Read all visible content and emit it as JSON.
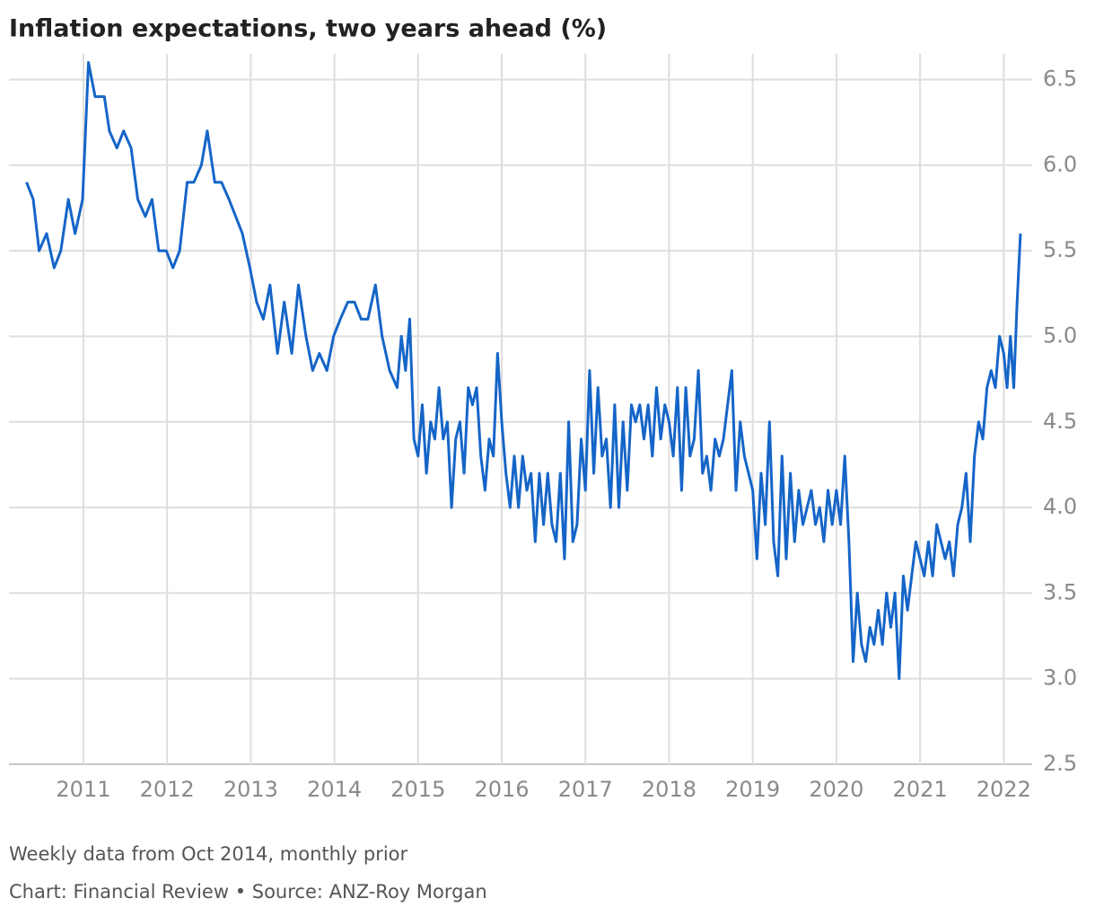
{
  "chart_data": {
    "type": "line",
    "title": "Inflation expectations, two years ahead (%)",
    "note": "Weekly data from Oct 2014, monthly prior",
    "source": "Chart: Financial Review • Source: ANZ-Roy Morgan",
    "color": "#1565c8",
    "grid": true,
    "xlim": [
      2010.11,
      2022.34
    ],
    "ylim": [
      2.5,
      6.65
    ],
    "xticks": [
      2011,
      2012,
      2013,
      2014,
      2015,
      2016,
      2017,
      2018,
      2019,
      2020,
      2021,
      2022
    ],
    "yticks": [
      2.5,
      {
        "value": 3,
        "label": "3.0"
      },
      3.5,
      {
        "value": 4,
        "label": "4.0"
      },
      4.5,
      {
        "value": 5,
        "label": "5.0"
      },
      5.5,
      {
        "value": 6,
        "label": "6.0"
      },
      6.5
    ],
    "x": [
      2010.32,
      2010.4,
      2010.47,
      2010.56,
      2010.65,
      2010.73,
      2010.82,
      2010.9,
      2010.99,
      2011.06,
      2011.14,
      2011.25,
      2011.31,
      2011.4,
      2011.48,
      2011.57,
      2011.65,
      2011.74,
      2011.82,
      2011.9,
      2011.99,
      2012.07,
      2012.15,
      2012.24,
      2012.32,
      2012.41,
      2012.48,
      2012.57,
      2012.65,
      2012.74,
      2012.82,
      2012.9,
      2012.99,
      2013.07,
      2013.15,
      2013.23,
      2013.32,
      2013.4,
      2013.49,
      2013.57,
      2013.66,
      2013.74,
      2013.82,
      2013.91,
      2013.99,
      2014.07,
      2014.16,
      2014.24,
      2014.32,
      2014.4,
      2014.49,
      2014.57,
      2014.66,
      2014.75,
      2014.8,
      2014.85,
      2014.9,
      2014.95,
      2015.0,
      2015.05,
      2015.1,
      2015.15,
      2015.2,
      2015.25,
      2015.3,
      2015.35,
      2015.4,
      2015.45,
      2015.5,
      2015.55,
      2015.6,
      2015.65,
      2015.7,
      2015.75,
      2015.8,
      2015.85,
      2015.9,
      2015.95,
      2016.0,
      2016.05,
      2016.1,
      2016.15,
      2016.2,
      2016.25,
      2016.3,
      2016.35,
      2016.4,
      2016.45,
      2016.5,
      2016.55,
      2016.6,
      2016.65,
      2016.7,
      2016.75,
      2016.8,
      2016.85,
      2016.9,
      2016.95,
      2017.0,
      2017.05,
      2017.1,
      2017.15,
      2017.2,
      2017.25,
      2017.3,
      2017.35,
      2017.4,
      2017.45,
      2017.5,
      2017.55,
      2017.6,
      2017.65,
      2017.7,
      2017.75,
      2017.8,
      2017.85,
      2017.9,
      2017.95,
      2018.0,
      2018.05,
      2018.1,
      2018.15,
      2018.2,
      2018.25,
      2018.3,
      2018.35,
      2018.4,
      2018.45,
      2018.5,
      2018.55,
      2018.6,
      2018.65,
      2018.7,
      2018.75,
      2018.8,
      2018.85,
      2018.9,
      2018.95,
      2019.0,
      2019.05,
      2019.1,
      2019.15,
      2019.2,
      2019.25,
      2019.3,
      2019.35,
      2019.4,
      2019.45,
      2019.5,
      2019.55,
      2019.6,
      2019.65,
      2019.7,
      2019.75,
      2019.8,
      2019.85,
      2019.9,
      2019.95,
      2020.0,
      2020.05,
      2020.1,
      2020.15,
      2020.2,
      2020.25,
      2020.3,
      2020.35,
      2020.4,
      2020.45,
      2020.5,
      2020.55,
      2020.6,
      2020.65,
      2020.7,
      2020.75,
      2020.8,
      2020.85,
      2020.9,
      2020.95,
      2021.0,
      2021.05,
      2021.1,
      2021.15,
      2021.2,
      2021.25,
      2021.3,
      2021.35,
      2021.4,
      2021.45,
      2021.5,
      2021.55,
      2021.6,
      2021.65,
      2021.7,
      2021.75,
      2021.8,
      2021.85,
      2021.9,
      2021.95,
      2022.0,
      2022.04,
      2022.08,
      2022.12,
      2022.16,
      2022.2
    ],
    "values": [
      5.9,
      5.8,
      5.5,
      5.6,
      5.4,
      5.5,
      5.8,
      5.6,
      5.8,
      6.6,
      6.4,
      6.4,
      6.2,
      6.1,
      6.2,
      6.1,
      5.8,
      5.7,
      5.8,
      5.5,
      5.5,
      5.4,
      5.5,
      5.9,
      5.9,
      6.0,
      6.2,
      5.9,
      5.9,
      5.8,
      5.7,
      5.6,
      5.4,
      5.2,
      5.1,
      5.3,
      4.9,
      5.2,
      4.9,
      5.3,
      5.0,
      4.8,
      4.9,
      4.8,
      5.0,
      5.1,
      5.2,
      5.2,
      5.1,
      5.1,
      5.3,
      5.0,
      4.8,
      4.7,
      5.0,
      4.8,
      5.1,
      4.4,
      4.3,
      4.6,
      4.2,
      4.5,
      4.4,
      4.7,
      4.4,
      4.5,
      4.0,
      4.4,
      4.5,
      4.2,
      4.7,
      4.6,
      4.7,
      4.3,
      4.1,
      4.4,
      4.3,
      4.9,
      4.5,
      4.2,
      4.0,
      4.3,
      4.0,
      4.3,
      4.1,
      4.2,
      3.8,
      4.2,
      3.9,
      4.2,
      3.9,
      3.8,
      4.2,
      3.7,
      4.5,
      3.8,
      3.9,
      4.4,
      4.1,
      4.8,
      4.2,
      4.7,
      4.3,
      4.4,
      4.0,
      4.6,
      4.0,
      4.5,
      4.1,
      4.6,
      4.5,
      4.6,
      4.4,
      4.6,
      4.3,
      4.7,
      4.4,
      4.6,
      4.5,
      4.3,
      4.7,
      4.1,
      4.7,
      4.3,
      4.4,
      4.8,
      4.2,
      4.3,
      4.1,
      4.4,
      4.3,
      4.4,
      4.6,
      4.8,
      4.1,
      4.5,
      4.3,
      4.2,
      4.1,
      3.7,
      4.2,
      3.9,
      4.5,
      3.8,
      3.6,
      4.3,
      3.7,
      4.2,
      3.8,
      4.1,
      3.9,
      4.0,
      4.1,
      3.9,
      4.0,
      3.8,
      4.1,
      3.9,
      4.1,
      3.9,
      4.3,
      3.8,
      3.1,
      3.5,
      3.2,
      3.1,
      3.3,
      3.2,
      3.4,
      3.2,
      3.5,
      3.3,
      3.5,
      3.0,
      3.6,
      3.4,
      3.6,
      3.8,
      3.7,
      3.6,
      3.8,
      3.6,
      3.9,
      3.8,
      3.7,
      3.8,
      3.6,
      3.9,
      4.0,
      4.2,
      3.8,
      4.3,
      4.5,
      4.4,
      4.7,
      4.8,
      4.7,
      5.0,
      4.9,
      4.7,
      5.0,
      4.7,
      5.2,
      5.6
    ]
  }
}
